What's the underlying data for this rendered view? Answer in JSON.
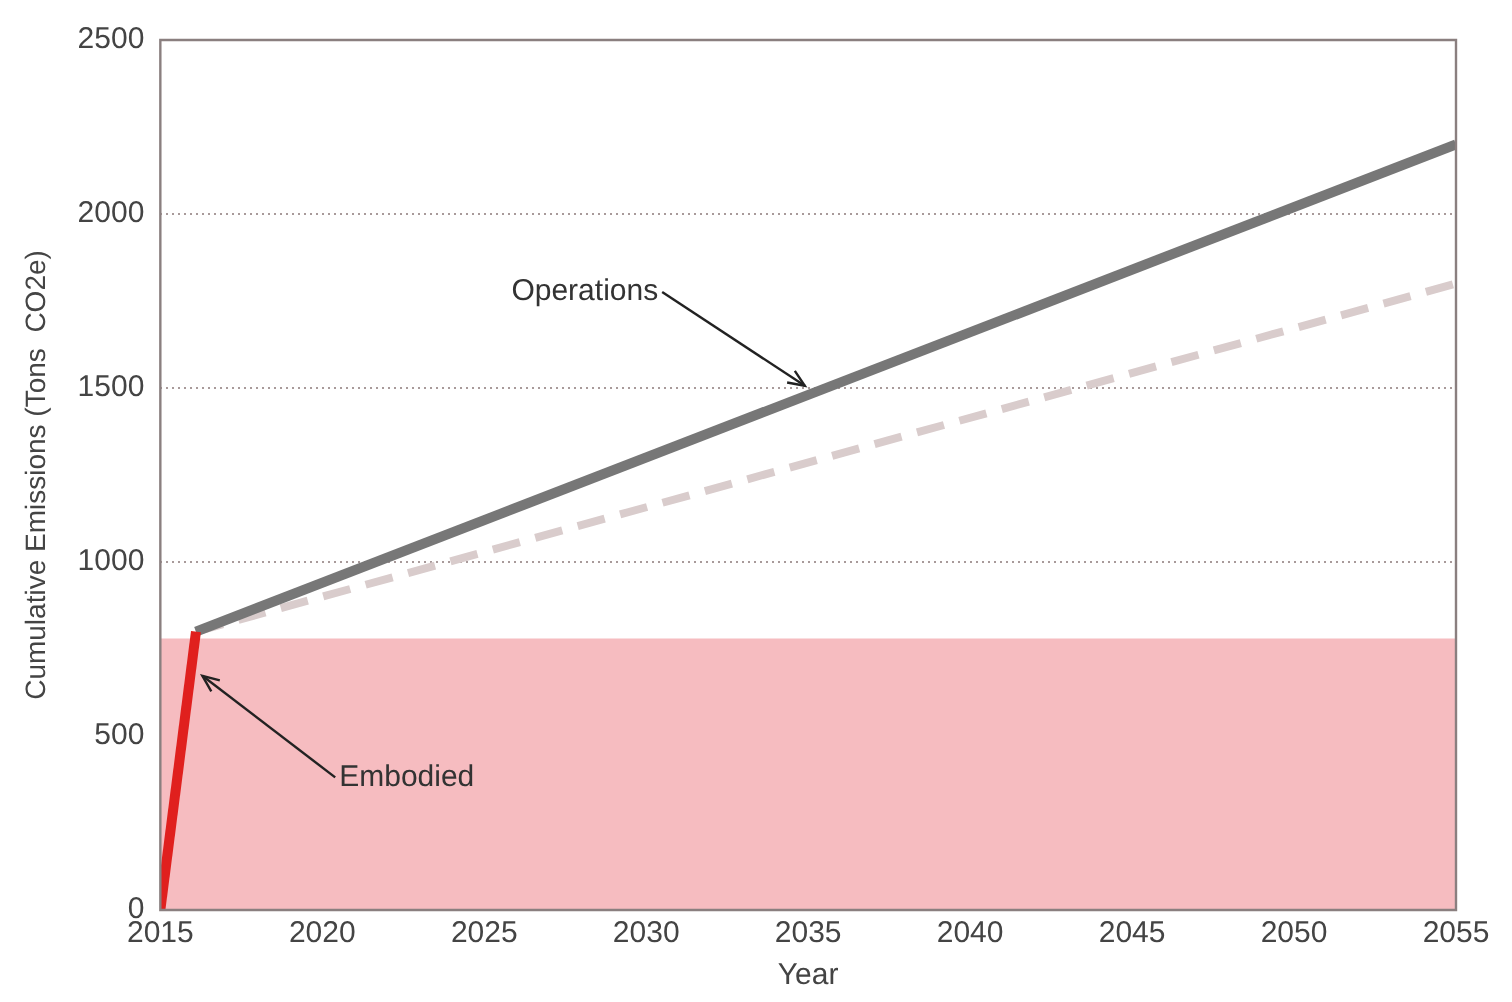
{
  "chart_data": {
    "type": "line",
    "xlabel": "Year",
    "ylabel": "Cumulative Emissions (Tons  CO2e)",
    "xlim": [
      2015,
      2055
    ],
    "xticks": [
      2015,
      2020,
      2025,
      2030,
      2035,
      2040,
      2045,
      2050,
      2055
    ],
    "ylim": [
      0,
      2500
    ],
    "yticks": [
      0,
      500,
      1000,
      1500,
      2000,
      2500
    ],
    "grid": "y",
    "legend": false,
    "marker": "none",
    "series": [
      {
        "x": [
          2015,
          2016.1
        ],
        "values": [
          0,
          800
        ],
        "color": "#e0201e",
        "line_style": "solid"
      },
      {
        "x": [
          2016.1,
          2055
        ],
        "values": [
          800,
          2200
        ],
        "color": "#777777",
        "line_style": "solid"
      },
      {
        "x": [
          2016.1,
          2055
        ],
        "values": [
          800,
          1800
        ],
        "color": "#d9cccc",
        "line_style": "dashed"
      }
    ],
    "bands": [
      {
        "axis": "y",
        "from": 0,
        "to": 780,
        "color": "#f6bcc0"
      }
    ],
    "annotations": [
      {
        "text": "Operations",
        "x": 2035,
        "y": 1500
      },
      {
        "text": "Embodied",
        "x": 2016.2,
        "y": 680
      }
    ]
  }
}
